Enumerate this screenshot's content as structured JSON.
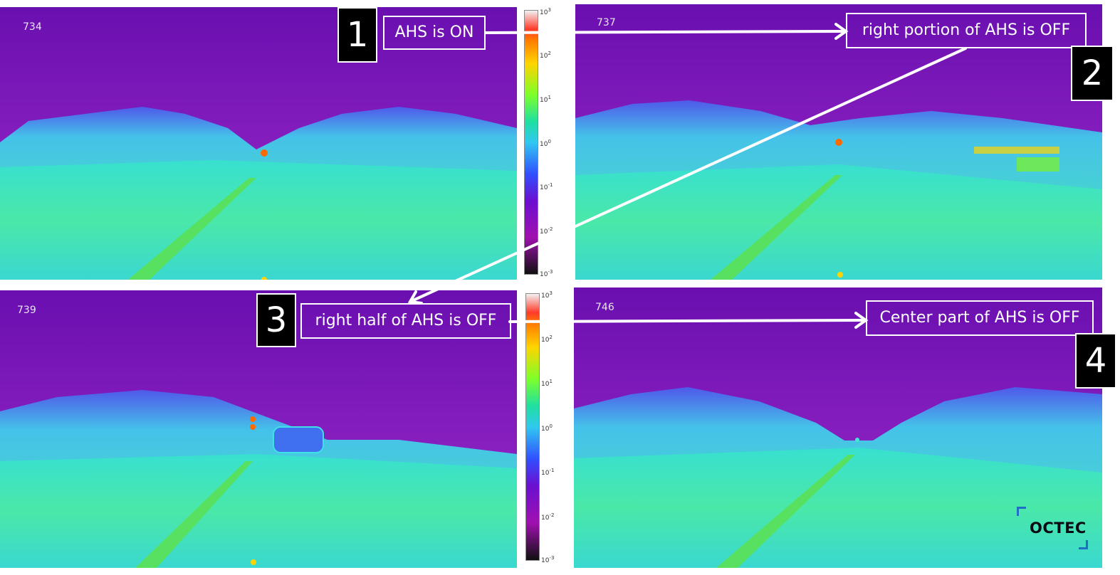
{
  "colors": {
    "sky": "#7a1fb8",
    "sky_dark": "#5c10a5",
    "treeline": "#3fd6e8",
    "road": "#39e3c0",
    "road_bright": "#5fe38a",
    "highlight": "#ff8a00"
  },
  "panels": [
    {
      "frame": "734",
      "callout": "AHS is ON",
      "number": "1"
    },
    {
      "frame": "737",
      "callout": "right portion of AHS is OFF",
      "number": "2"
    },
    {
      "frame": "739",
      "callout": "right half of AHS is OFF",
      "number": "3"
    },
    {
      "frame": "746",
      "callout": "Center part of AHS is OFF",
      "number": "4"
    }
  ],
  "colorbar": {
    "ticks": [
      "10",
      "10",
      "10",
      "10",
      "10",
      "10",
      "10"
    ],
    "exponents": [
      "3",
      "2",
      "1",
      "0",
      "-1",
      "-2",
      "-3"
    ]
  },
  "logo": {
    "text": "OCTEC",
    "icon": "octec-logo-icon"
  }
}
